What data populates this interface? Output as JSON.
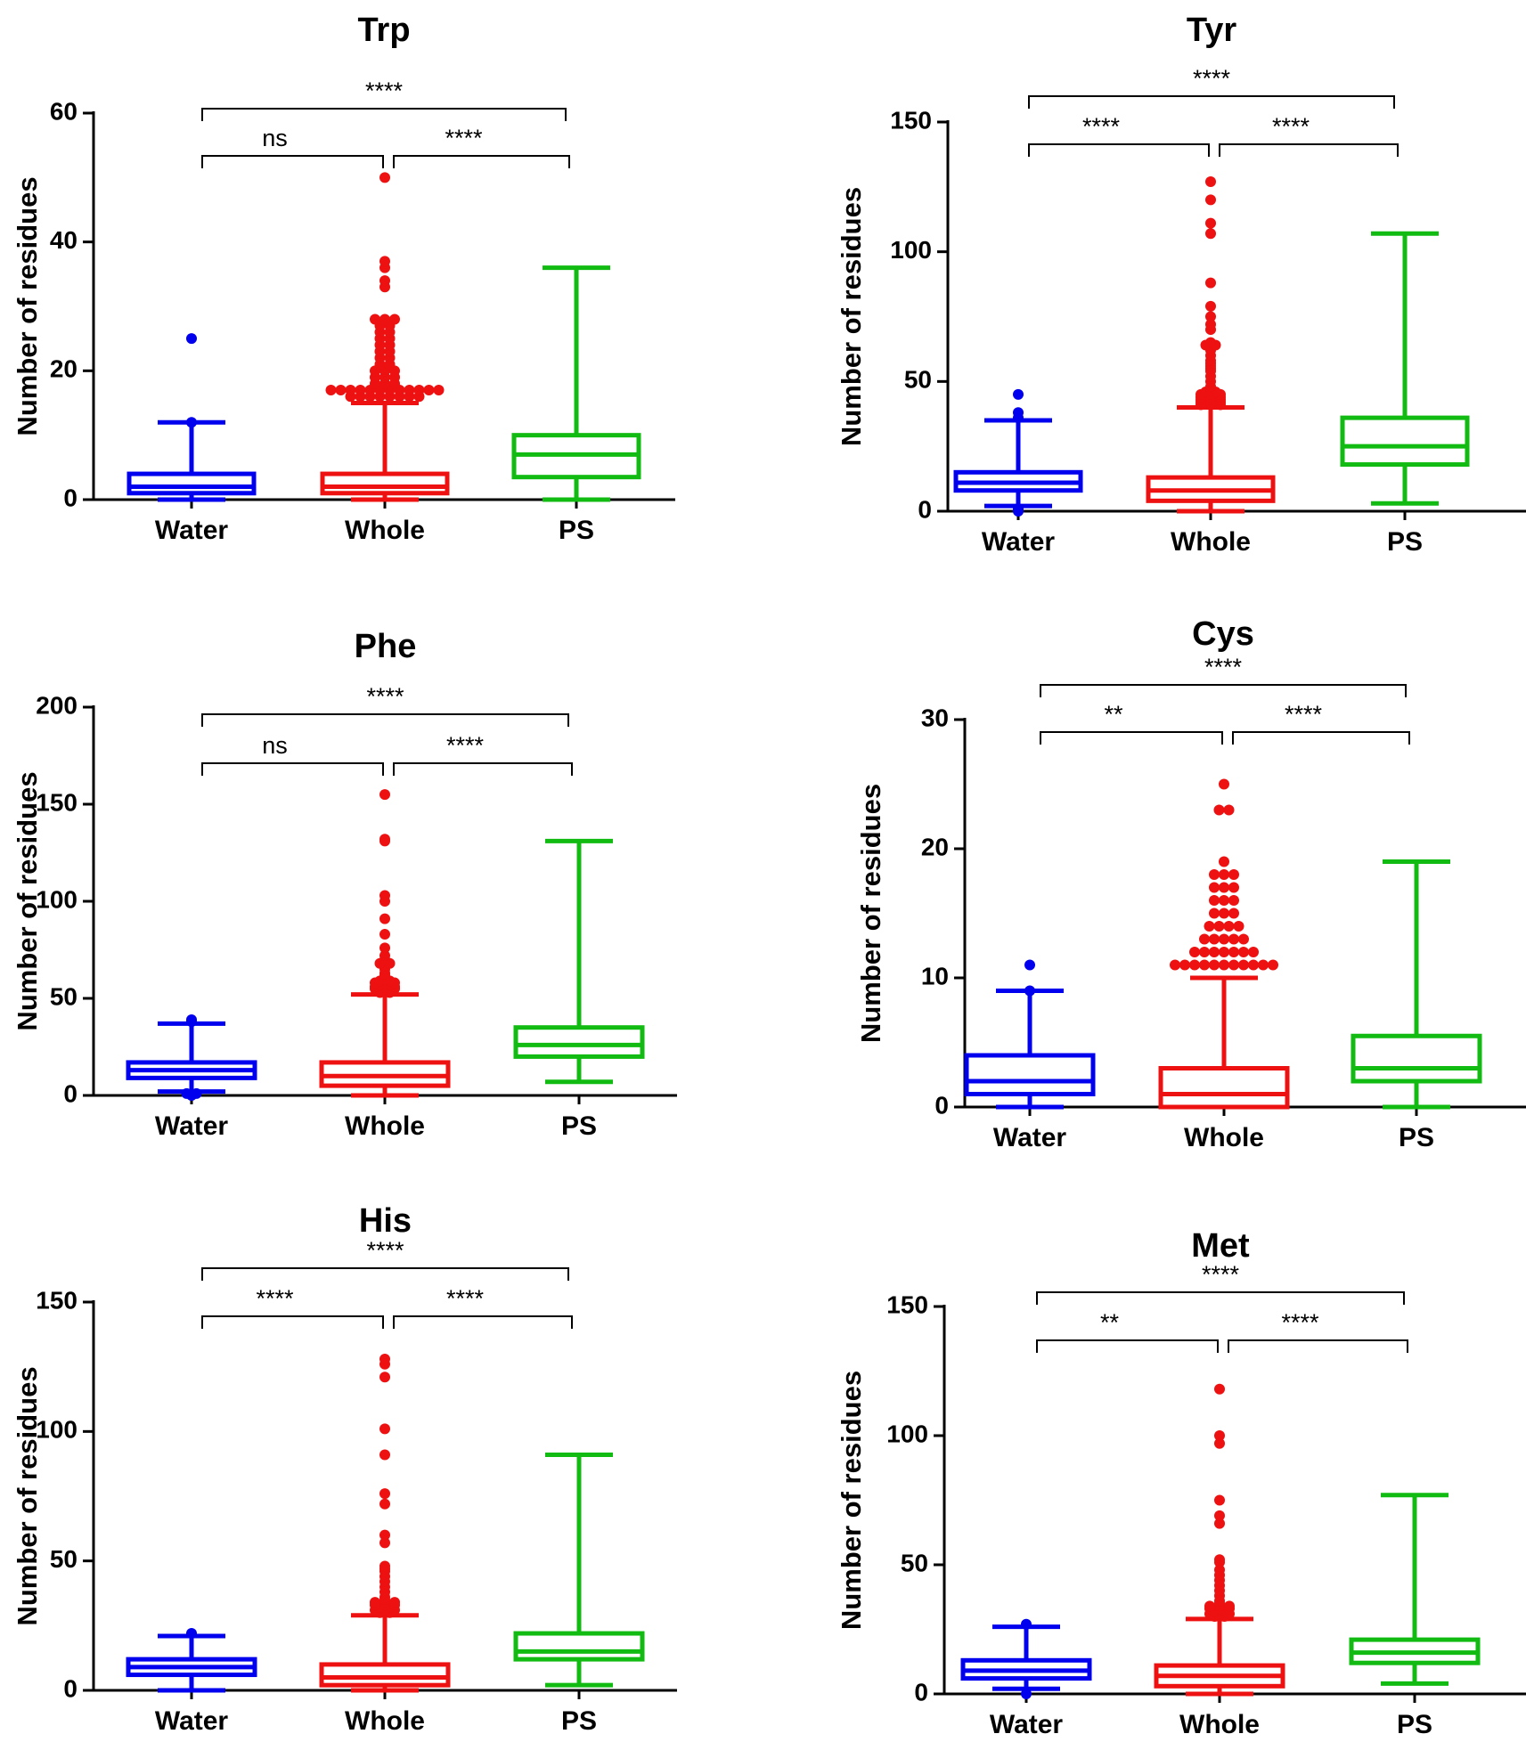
{
  "colors": {
    "Water": "#0000ee",
    "Whole": "#ee1111",
    "PS": "#11bb11",
    "axis": "#000000"
  },
  "chart_data": [
    {
      "type": "box",
      "title": "Trp",
      "ylabel": "Number of residues",
      "categories": [
        "Water",
        "Whole",
        "PS"
      ],
      "ylim": [
        0,
        60
      ],
      "yticks": [
        "0",
        "20",
        "40",
        "60"
      ],
      "yticks_values": [
        0,
        20,
        40,
        60
      ],
      "boxes": [
        {
          "name": "Water",
          "whisker_low": 0,
          "q1": 1,
          "median": 2,
          "q3": 4,
          "whisker_high": 12,
          "outliers": [
            12,
            25
          ]
        },
        {
          "name": "Whole",
          "whisker_low": 0,
          "q1": 1,
          "median": 2,
          "q3": 4,
          "whisker_high": 15,
          "outliers": [
            16,
            16,
            16,
            16,
            16,
            16,
            16,
            16,
            17,
            17,
            17,
            17,
            17,
            17,
            17,
            17,
            17,
            17,
            17,
            17,
            18,
            18,
            18,
            19,
            19,
            19,
            20,
            20,
            20,
            21,
            21,
            22,
            22,
            23,
            23,
            24,
            24,
            25,
            25,
            26,
            26,
            27,
            27,
            28,
            28,
            28,
            33,
            34,
            36,
            37,
            50
          ]
        },
        {
          "name": "PS",
          "whisker_low": 0,
          "q1": 3.5,
          "median": 7,
          "q3": 10,
          "whisker_high": 36,
          "outliers": []
        }
      ],
      "comparisons": [
        {
          "pair": [
            "Water",
            "Whole"
          ],
          "label": "ns"
        },
        {
          "pair": [
            "Whole",
            "PS"
          ],
          "label": "****"
        },
        {
          "pair": [
            "Water",
            "PS"
          ],
          "label": "****"
        }
      ]
    },
    {
      "type": "box",
      "title": "Tyr",
      "ylabel": "Number of residues",
      "categories": [
        "Water",
        "Whole",
        "PS"
      ],
      "ylim": [
        0,
        150
      ],
      "yticks": [
        "0",
        "50",
        "100",
        "150"
      ],
      "yticks_values": [
        0,
        50,
        100,
        150
      ],
      "boxes": [
        {
          "name": "Water",
          "whisker_low": 2,
          "q1": 8,
          "median": 11,
          "q3": 15,
          "whisker_high": 35,
          "outliers": [
            0,
            1,
            36,
            38,
            45
          ]
        },
        {
          "name": "Whole",
          "whisker_low": 0,
          "q1": 4,
          "median": 8,
          "q3": 13,
          "whisker_high": 40,
          "outliers": [
            41,
            41,
            41,
            42,
            42,
            42,
            43,
            43,
            43,
            44,
            44,
            44,
            45,
            45,
            45,
            46,
            46,
            47,
            48,
            50,
            52,
            54,
            55,
            56,
            57,
            58,
            60,
            62,
            63,
            64,
            64,
            65,
            70,
            72,
            75,
            79,
            88,
            107,
            111,
            120,
            127
          ]
        },
        {
          "name": "PS",
          "whisker_low": 3,
          "q1": 18,
          "median": 25,
          "q3": 36,
          "whisker_high": 107,
          "outliers": []
        }
      ],
      "comparisons": [
        {
          "pair": [
            "Water",
            "Whole"
          ],
          "label": "****"
        },
        {
          "pair": [
            "Whole",
            "PS"
          ],
          "label": "****"
        },
        {
          "pair": [
            "Water",
            "PS"
          ],
          "label": "****"
        }
      ]
    },
    {
      "type": "box",
      "title": "Phe",
      "ylabel": "Number of residues",
      "categories": [
        "Water",
        "Whole",
        "PS"
      ],
      "ylim": [
        0,
        200
      ],
      "yticks": [
        "0",
        "50",
        "100",
        "150",
        "200"
      ],
      "yticks_values": [
        0,
        50,
        100,
        150,
        200
      ],
      "boxes": [
        {
          "name": "Water",
          "whisker_low": 2,
          "q1": 9,
          "median": 13,
          "q3": 17,
          "whisker_high": 37,
          "outliers": [
            0,
            1,
            1,
            38,
            39
          ]
        },
        {
          "name": "Whole",
          "whisker_low": 0,
          "q1": 5,
          "median": 10,
          "q3": 17,
          "whisker_high": 52,
          "outliers": [
            53,
            53,
            54,
            54,
            55,
            55,
            55,
            56,
            56,
            56,
            57,
            57,
            58,
            58,
            58,
            59,
            59,
            60,
            62,
            63,
            65,
            67,
            68,
            68,
            70,
            72,
            76,
            83,
            91,
            100,
            103,
            131,
            132,
            155
          ]
        },
        {
          "name": "PS",
          "whisker_low": 7,
          "q1": 20,
          "median": 26,
          "q3": 35,
          "whisker_high": 131,
          "outliers": []
        }
      ],
      "comparisons": [
        {
          "pair": [
            "Water",
            "Whole"
          ],
          "label": "ns"
        },
        {
          "pair": [
            "Whole",
            "PS"
          ],
          "label": "****"
        },
        {
          "pair": [
            "Water",
            "PS"
          ],
          "label": "****"
        }
      ]
    },
    {
      "type": "box",
      "title": "Cys",
      "ylabel": "Number of residues",
      "categories": [
        "Water",
        "Whole",
        "PS"
      ],
      "ylim": [
        0,
        30
      ],
      "yticks": [
        "0",
        "10",
        "20",
        "30"
      ],
      "yticks_values": [
        0,
        10,
        20,
        30
      ],
      "boxes": [
        {
          "name": "Water",
          "whisker_low": 0,
          "q1": 1,
          "median": 2,
          "q3": 4,
          "whisker_high": 9,
          "outliers": [
            9,
            11
          ]
        },
        {
          "name": "Whole",
          "whisker_low": 0,
          "q1": 0,
          "median": 1,
          "q3": 3,
          "whisker_high": 10,
          "outliers": [
            11,
            11,
            11,
            11,
            11,
            11,
            11,
            11,
            11,
            11,
            11,
            12,
            12,
            12,
            12,
            12,
            12,
            12,
            13,
            13,
            13,
            13,
            13,
            14,
            14,
            14,
            14,
            15,
            15,
            15,
            16,
            16,
            16,
            17,
            17,
            17,
            18,
            18,
            18,
            19,
            23,
            23,
            25
          ]
        },
        {
          "name": "PS",
          "whisker_low": 0,
          "q1": 2,
          "median": 3,
          "q3": 5.5,
          "whisker_high": 19,
          "outliers": []
        }
      ],
      "comparisons": [
        {
          "pair": [
            "Water",
            "Whole"
          ],
          "label": "**"
        },
        {
          "pair": [
            "Whole",
            "PS"
          ],
          "label": "****"
        },
        {
          "pair": [
            "Water",
            "PS"
          ],
          "label": "****"
        }
      ]
    },
    {
      "type": "box",
      "title": "His",
      "ylabel": "Number of residues",
      "categories": [
        "Water",
        "Whole",
        "PS"
      ],
      "ylim": [
        0,
        150
      ],
      "yticks": [
        "0",
        "50",
        "100",
        "150"
      ],
      "yticks_values": [
        0,
        50,
        100,
        150
      ],
      "boxes": [
        {
          "name": "Water",
          "whisker_low": 0,
          "q1": 6,
          "median": 9,
          "q3": 12,
          "whisker_high": 21,
          "outliers": [
            22
          ]
        },
        {
          "name": "Whole",
          "whisker_low": 0,
          "q1": 2,
          "median": 5,
          "q3": 10,
          "whisker_high": 29,
          "outliers": [
            30,
            30,
            31,
            31,
            31,
            32,
            32,
            33,
            33,
            33,
            34,
            34,
            34,
            35,
            36,
            38,
            40,
            42,
            44,
            46,
            47,
            48,
            57,
            60,
            72,
            76,
            91,
            101,
            121,
            126,
            128
          ]
        },
        {
          "name": "PS",
          "whisker_low": 2,
          "q1": 12,
          "median": 15,
          "q3": 22,
          "whisker_high": 91,
          "outliers": []
        }
      ],
      "comparisons": [
        {
          "pair": [
            "Water",
            "Whole"
          ],
          "label": "****"
        },
        {
          "pair": [
            "Whole",
            "PS"
          ],
          "label": "****"
        },
        {
          "pair": [
            "Water",
            "PS"
          ],
          "label": "****"
        }
      ]
    },
    {
      "type": "box",
      "title": "Met",
      "ylabel": "Number of residues",
      "categories": [
        "Water",
        "Whole",
        "PS"
      ],
      "ylim": [
        0,
        150
      ],
      "yticks": [
        "0",
        "50",
        "100",
        "150"
      ],
      "yticks_values": [
        0,
        50,
        100,
        150
      ],
      "boxes": [
        {
          "name": "Water",
          "whisker_low": 2,
          "q1": 6,
          "median": 9,
          "q3": 13,
          "whisker_high": 26,
          "outliers": [
            0,
            27
          ]
        },
        {
          "name": "Whole",
          "whisker_low": 0,
          "q1": 3,
          "median": 7,
          "q3": 11,
          "whisker_high": 29,
          "outliers": [
            30,
            30,
            31,
            31,
            31,
            32,
            32,
            33,
            33,
            33,
            34,
            34,
            34,
            35,
            36,
            38,
            40,
            42,
            44,
            46,
            48,
            51,
            52,
            66,
            69,
            75,
            97,
            100,
            118
          ]
        },
        {
          "name": "PS",
          "whisker_low": 4,
          "q1": 12,
          "median": 16,
          "q3": 21,
          "whisker_high": 77,
          "outliers": []
        }
      ],
      "comparisons": [
        {
          "pair": [
            "Water",
            "Whole"
          ],
          "label": "**"
        },
        {
          "pair": [
            "Whole",
            "PS"
          ],
          "label": "****"
        },
        {
          "pair": [
            "Water",
            "PS"
          ],
          "label": "****"
        }
      ]
    }
  ]
}
